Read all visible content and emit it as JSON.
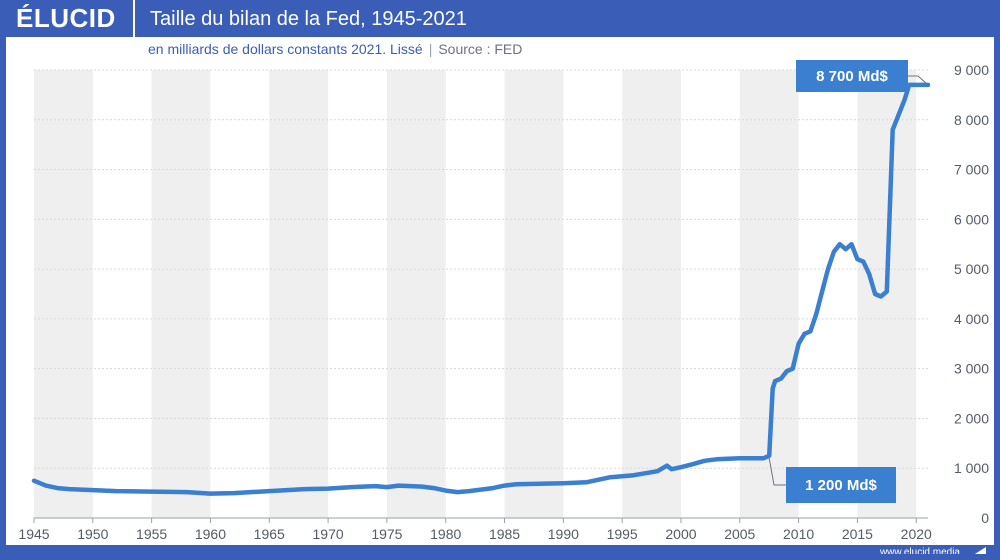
{
  "header": {
    "logo": "ÉLUCID",
    "title": "Taille du bilan de la Fed, 1945-2021"
  },
  "subtitle": {
    "text": "en milliards de dollars constants 2021. Lissé",
    "source": "Source : FED"
  },
  "footer": {
    "url": "www.elucid.media"
  },
  "colors": {
    "brand": "#3a5db8",
    "line": "#3a7fd0",
    "band": "#efefef"
  },
  "chart_data": {
    "type": "line",
    "title": "Taille du bilan de la Fed, 1945-2021",
    "xlabel": "",
    "ylabel": "",
    "xlim": [
      1945,
      2021
    ],
    "ylim": [
      0,
      9000
    ],
    "grid": true,
    "x_ticks": [
      "1945",
      "1950",
      "1955",
      "1960",
      "1965",
      "1970",
      "1975",
      "1980",
      "1985",
      "1990",
      "1995",
      "2000",
      "2005",
      "2010",
      "2015",
      "2020"
    ],
    "y_ticks": [
      "0",
      "1 000",
      "2 000",
      "3 000",
      "4 000",
      "5 000",
      "6 000",
      "7 000",
      "8 000",
      "9 000"
    ],
    "series": [
      {
        "name": "",
        "x": [
          1945,
          1946,
          1947,
          1948,
          1950,
          1952,
          1955,
          1958,
          1960,
          1962,
          1965,
          1968,
          1970,
          1972,
          1974,
          1975,
          1976,
          1978,
          1979,
          1980,
          1981,
          1982,
          1984,
          1985,
          1986,
          1988,
          1990,
          1992,
          1994,
          1995,
          1996,
          1998,
          1998.8,
          1999.2,
          2000,
          2001,
          2002,
          2003,
          2004,
          2005,
          2006,
          2007,
          2007.5,
          2007.8,
          2008,
          2008.5,
          2009,
          2009.5,
          2010,
          2010.5,
          2011,
          2011.5,
          2012,
          2012.5,
          2013,
          2013.5,
          2014,
          2014.5,
          2015,
          2015.5,
          2016,
          2016.5,
          2017,
          2017.5,
          2018,
          2018.5,
          2019,
          2019.4,
          2019.8,
          2020.2,
          2020.6,
          2021
        ],
        "y": [
          750,
          650,
          600,
          580,
          560,
          540,
          530,
          520,
          490,
          500,
          540,
          580,
          590,
          620,
          640,
          620,
          650,
          630,
          600,
          550,
          520,
          540,
          600,
          650,
          680,
          690,
          700,
          720,
          820,
          840,
          860,
          940,
          1050,
          980,
          1020,
          1080,
          1150,
          1180,
          1190,
          1200,
          1200,
          1200,
          1250,
          2600,
          2750,
          2800,
          2950,
          3000,
          3500,
          3700,
          3750,
          4100,
          4550,
          5000,
          5350,
          5500,
          5400,
          5500,
          5200,
          5150,
          4900,
          4500,
          4450,
          4550,
          7800,
          8100,
          8400,
          8700,
          8700,
          8700,
          8700,
          8700
        ]
      }
    ],
    "annotations": [
      {
        "label": "8 700 Md$",
        "x": 2021,
        "y": 8700
      },
      {
        "label": "1 200 Md$",
        "x": 2007.5,
        "y": 1200
      }
    ]
  }
}
